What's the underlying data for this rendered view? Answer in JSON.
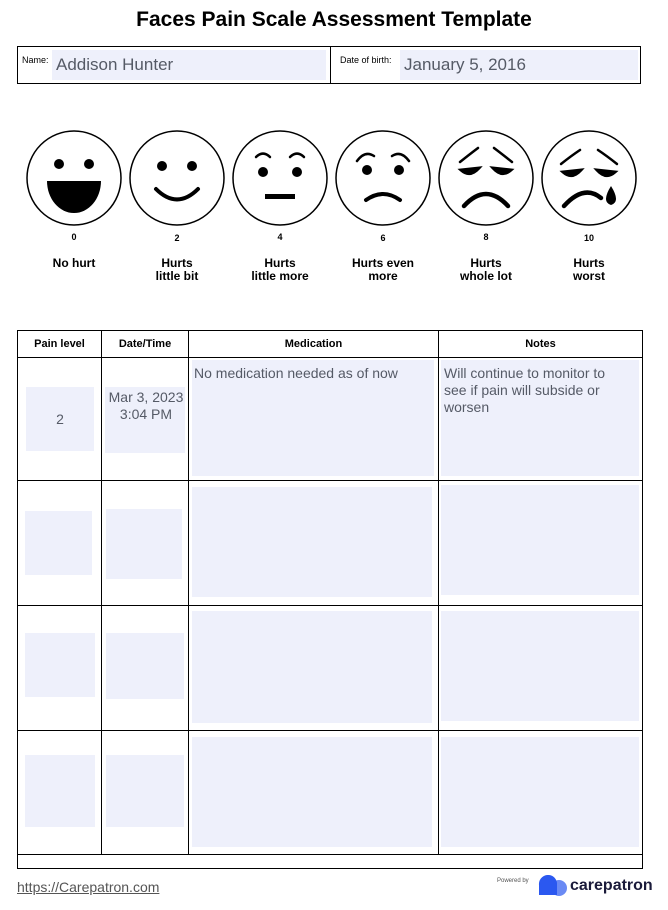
{
  "title": "Faces Pain Scale Assessment Template",
  "patient": {
    "name_label": "Name:",
    "name": "Addison Hunter",
    "dob_label": "Date of birth:",
    "dob": "January 5, 2016"
  },
  "faces": [
    {
      "level": 0,
      "label": [
        "No hurt"
      ]
    },
    {
      "level": 2,
      "label": [
        "Hurts",
        "little bit"
      ]
    },
    {
      "level": 4,
      "label": [
        "Hurts",
        "little more"
      ]
    },
    {
      "level": 6,
      "label": [
        "Hurts even",
        "more"
      ]
    },
    {
      "level": 8,
      "label": [
        "Hurts",
        "whole lot"
      ]
    },
    {
      "level": 10,
      "label": [
        "Hurts",
        "worst"
      ]
    }
  ],
  "table": {
    "headers": [
      "Pain level",
      "Date/Time",
      "Medication",
      "Notes"
    ],
    "rows": [
      {
        "pain_level": 2,
        "date_time": [
          "Mar 3, 2023",
          "3:04 PM"
        ],
        "medication": "No medication needed as of now",
        "notes": "Will continue to monitor to see if pain will subside or worsen"
      }
    ]
  },
  "footer": {
    "link": "https://Carepatron.com",
    "powered_by": "Powered by",
    "brand": "carepatron"
  }
}
